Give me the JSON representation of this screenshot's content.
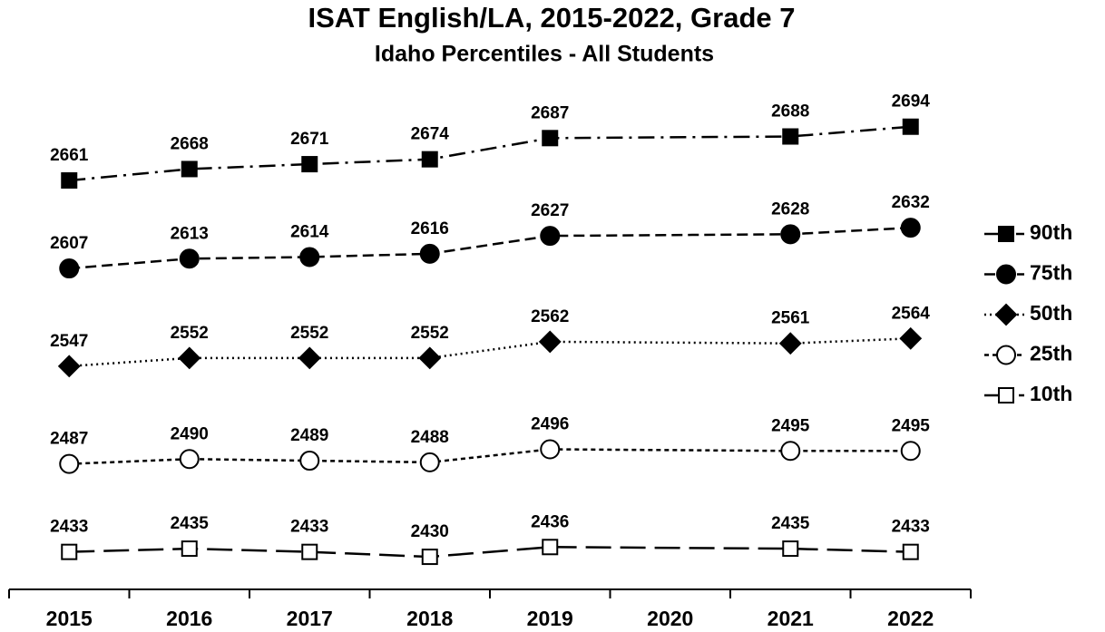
{
  "chart_data": {
    "type": "line",
    "title": "ISAT English/LA, 2015-2022, Grade 7",
    "subtitle": "Idaho Percentiles - All Students",
    "x": [
      2015,
      2016,
      2017,
      2018,
      2019,
      2021,
      2022
    ],
    "xlim": [
      2014.5,
      2022.5
    ],
    "xticks": [
      2015,
      2016,
      2017,
      2018,
      2019,
      2020,
      2021,
      2022
    ],
    "ylim": [
      2410,
      2715
    ],
    "legend": "right",
    "series": [
      {
        "name": "90th",
        "color": "#000000",
        "marker": "square",
        "dash": "dashdot",
        "values": [
          2661,
          2668,
          2671,
          2674,
          2687,
          2688,
          2694
        ]
      },
      {
        "name": "75th",
        "color": "#000000",
        "marker": "circle",
        "dash": "dashed",
        "values": [
          2607,
          2613,
          2614,
          2616,
          2627,
          2628,
          2632
        ]
      },
      {
        "name": "50th",
        "color": "#000000",
        "marker": "diamond",
        "dash": "dotted",
        "values": [
          2547,
          2552,
          2552,
          2552,
          2562,
          2561,
          2564
        ]
      },
      {
        "name": "25th",
        "color": "#000000",
        "marker": "circle-open",
        "dash": "shortdash",
        "values": [
          2487,
          2490,
          2489,
          2488,
          2496,
          2495,
          2495
        ]
      },
      {
        "name": "10th",
        "color": "#000000",
        "marker": "square-open",
        "dash": "longdash",
        "values": [
          2433,
          2435,
          2433,
          2430,
          2436,
          2435,
          2433
        ]
      }
    ]
  }
}
